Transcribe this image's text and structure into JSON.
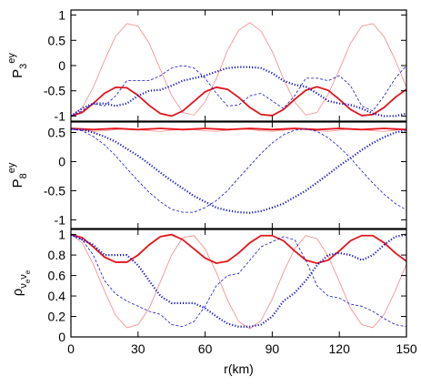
{
  "chart_data": [
    {
      "type": "line",
      "ylabel": [
        {
          "text": "P",
          "level": 0
        },
        {
          "text": "3",
          "level": 1
        },
        {
          "text": "ey",
          "level": -1
        }
      ],
      "x": [
        0,
        5,
        10,
        15,
        20,
        25,
        30,
        35,
        40,
        45,
        50,
        55,
        60,
        65,
        70,
        75,
        80,
        85,
        90,
        95,
        100,
        105,
        110,
        115,
        120,
        125,
        130,
        135,
        140,
        145,
        150
      ],
      "xlim": [
        0,
        150
      ],
      "xticks": [
        0,
        30,
        60,
        90,
        120,
        150
      ],
      "ylim": [
        -1.1,
        1.1
      ],
      "yticks": [
        1,
        0.5,
        0,
        -0.5,
        -1
      ],
      "series": [
        {
          "color": "#f08a8a",
          "linewidth": 0.8,
          "dash": "solid",
          "values": [
            -1,
            -0.84,
            -0.43,
            0.1,
            0.58,
            0.83,
            0.78,
            0.44,
            -0.08,
            -0.59,
            -0.93,
            -0.98,
            -0.72,
            -0.26,
            0.3,
            0.7,
            0.85,
            0.68,
            0.28,
            -0.26,
            -0.72,
            -0.98,
            -0.93,
            -0.57,
            -0.08,
            0.44,
            0.78,
            0.83,
            0.57,
            0.11,
            -0.43
          ]
        },
        {
          "color": "#e3141c",
          "linewidth": 1.8,
          "dash": "solid",
          "values": [
            -1,
            -0.93,
            -0.75,
            -0.55,
            -0.43,
            -0.44,
            -0.59,
            -0.79,
            -0.95,
            -1,
            -0.9,
            -0.71,
            -0.52,
            -0.43,
            -0.47,
            -0.63,
            -0.83,
            -0.97,
            -0.99,
            -0.87,
            -0.67,
            -0.49,
            -0.42,
            -0.49,
            -0.67,
            -0.87,
            -0.99,
            -0.97,
            -0.83,
            -0.63,
            -0.47
          ]
        },
        {
          "color": "#1414c8",
          "linewidth": 0.8,
          "dash": "dashed",
          "values": [
            -1,
            -0.9,
            -0.75,
            -0.8,
            -0.6,
            -0.3,
            -0.3,
            -0.3,
            -0.2,
            -0.05,
            0,
            -0.05,
            -0.25,
            -0.55,
            -0.8,
            -0.78,
            -0.6,
            -0.55,
            -0.7,
            -0.85,
            -0.6,
            -0.25,
            -0.25,
            -0.3,
            -0.2,
            -0.4,
            -0.8,
            -0.9,
            -0.6,
            -0.25,
            0
          ]
        },
        {
          "color": "#1414c8",
          "linewidth": 2.2,
          "dash": "dotted",
          "values": [
            -1,
            -0.85,
            -0.75,
            -0.75,
            -0.8,
            -0.75,
            -0.6,
            -0.5,
            -0.48,
            -0.4,
            -0.3,
            -0.25,
            -0.2,
            -0.12,
            -0.05,
            -0.03,
            -0.03,
            -0.05,
            -0.15,
            -0.3,
            -0.38,
            -0.42,
            -0.55,
            -0.7,
            -0.75,
            -0.78,
            -0.85,
            -0.95,
            -1,
            -1,
            -0.95
          ]
        }
      ]
    },
    {
      "type": "line",
      "ylabel": [
        {
          "text": "P",
          "level": 0
        },
        {
          "text": "8",
          "level": 1
        },
        {
          "text": "ey",
          "level": -1
        }
      ],
      "x": [
        0,
        5,
        10,
        15,
        20,
        25,
        30,
        35,
        40,
        45,
        50,
        55,
        60,
        65,
        70,
        75,
        80,
        85,
        90,
        95,
        100,
        105,
        110,
        115,
        120,
        125,
        130,
        135,
        140,
        145,
        150
      ],
      "xlim": [
        0,
        150
      ],
      "xticks": [
        0,
        30,
        60,
        90,
        120,
        150
      ],
      "ylim": [
        -1.15,
        0.68
      ],
      "yticks": [
        0.5,
        0,
        -0.5,
        -1
      ],
      "series": [
        {
          "color": "#f08a8a",
          "linewidth": 0.8,
          "dash": "solid",
          "values": [
            0.56,
            0.54,
            0.52,
            0.53,
            0.55,
            0.56,
            0.55,
            0.53,
            0.52,
            0.54,
            0.56,
            0.55,
            0.53,
            0.52,
            0.54,
            0.56,
            0.55,
            0.53,
            0.52,
            0.54,
            0.56,
            0.55,
            0.53,
            0.52,
            0.54,
            0.56,
            0.55,
            0.53,
            0.52,
            0.54,
            0.56
          ]
        },
        {
          "color": "#e3141c",
          "linewidth": 1.8,
          "dash": "solid",
          "values": [
            0.57,
            0.56,
            0.55,
            0.56,
            0.57,
            0.56,
            0.55,
            0.56,
            0.57,
            0.56,
            0.55,
            0.56,
            0.57,
            0.56,
            0.55,
            0.56,
            0.57,
            0.56,
            0.55,
            0.56,
            0.57,
            0.56,
            0.55,
            0.56,
            0.57,
            0.56,
            0.55,
            0.56,
            0.57,
            0.56,
            0.55
          ]
        },
        {
          "color": "#1414c8",
          "linewidth": 0.8,
          "dash": "dashed",
          "values": [
            0.56,
            0.53,
            0.43,
            0.29,
            0.1,
            -0.12,
            -0.33,
            -0.53,
            -0.69,
            -0.82,
            -0.87,
            -0.87,
            -0.79,
            -0.67,
            -0.5,
            -0.28,
            -0.07,
            0.14,
            0.32,
            0.46,
            0.54,
            0.56,
            0.52,
            0.41,
            0.25,
            0.06,
            -0.16,
            -0.37,
            -0.56,
            -0.72,
            -0.83
          ]
        },
        {
          "color": "#1414c8",
          "linewidth": 2.2,
          "dash": "dotted",
          "values": [
            0.56,
            0.55,
            0.5,
            0.43,
            0.34,
            0.22,
            0.1,
            -0.04,
            -0.19,
            -0.33,
            -0.46,
            -0.59,
            -0.69,
            -0.79,
            -0.84,
            -0.87,
            -0.88,
            -0.85,
            -0.79,
            -0.72,
            -0.61,
            -0.5,
            -0.36,
            -0.22,
            -0.07,
            0.06,
            0.2,
            0.32,
            0.42,
            0.5,
            0.54
          ]
        }
      ]
    },
    {
      "type": "line",
      "ylabel": [
        {
          "text": "ρ",
          "level": 0
        },
        {
          "text": "ν",
          "level": 1
        },
        {
          "text": "e",
          "level": 2
        },
        {
          "text": "ν",
          "level": 1
        },
        {
          "text": "e",
          "level": 2
        }
      ],
      "xlabel": "r(km)",
      "x": [
        0,
        5,
        10,
        15,
        20,
        25,
        30,
        35,
        40,
        45,
        50,
        55,
        60,
        65,
        70,
        75,
        80,
        85,
        90,
        95,
        100,
        105,
        110,
        115,
        120,
        125,
        130,
        135,
        140,
        145,
        150
      ],
      "xlim": [
        0,
        150
      ],
      "xticks": [
        0,
        30,
        60,
        90,
        120,
        150
      ],
      "ylim": [
        0,
        1.05
      ],
      "yticks": [
        1,
        0.8,
        0.6,
        0.4,
        0.2,
        0
      ],
      "series": [
        {
          "color": "#f08a8a",
          "linewidth": 0.8,
          "dash": "solid",
          "values": [
            1,
            0.92,
            0.71,
            0.45,
            0.21,
            0.09,
            0.12,
            0.28,
            0.54,
            0.8,
            0.97,
            0.99,
            0.86,
            0.63,
            0.36,
            0.15,
            0.08,
            0.16,
            0.37,
            0.63,
            0.86,
            0.99,
            0.96,
            0.79,
            0.54,
            0.28,
            0.12,
            0.09,
            0.22,
            0.45,
            0.71
          ]
        },
        {
          "color": "#e3141c",
          "linewidth": 1.8,
          "dash": "solid",
          "values": [
            1,
            0.97,
            0.88,
            0.78,
            0.73,
            0.73,
            0.8,
            0.9,
            0.98,
            1,
            0.95,
            0.86,
            0.77,
            0.72,
            0.74,
            0.82,
            0.92,
            0.99,
            0.99,
            0.94,
            0.84,
            0.75,
            0.72,
            0.75,
            0.84,
            0.94,
            0.99,
            0.99,
            0.92,
            0.82,
            0.74
          ]
        },
        {
          "color": "#1414c8",
          "linewidth": 0.8,
          "dash": "dashed",
          "values": [
            1,
            0.95,
            0.8,
            0.55,
            0.42,
            0.35,
            0.3,
            0.25,
            0.22,
            0.12,
            0.1,
            0.15,
            0.3,
            0.5,
            0.6,
            0.62,
            0.75,
            0.88,
            0.93,
            0.98,
            0.95,
            0.75,
            0.5,
            0.4,
            0.38,
            0.32,
            0.3,
            0.25,
            0.18,
            0.12,
            0.1
          ]
        },
        {
          "color": "#1414c8",
          "linewidth": 2.2,
          "dash": "dotted",
          "values": [
            1,
            0.95,
            0.9,
            0.8,
            0.8,
            0.8,
            0.7,
            0.55,
            0.4,
            0.33,
            0.33,
            0.33,
            0.28,
            0.2,
            0.13,
            0.1,
            0.1,
            0.12,
            0.2,
            0.35,
            0.43,
            0.55,
            0.7,
            0.8,
            0.82,
            0.8,
            0.75,
            0.8,
            0.9,
            0.98,
            1
          ]
        }
      ]
    }
  ]
}
